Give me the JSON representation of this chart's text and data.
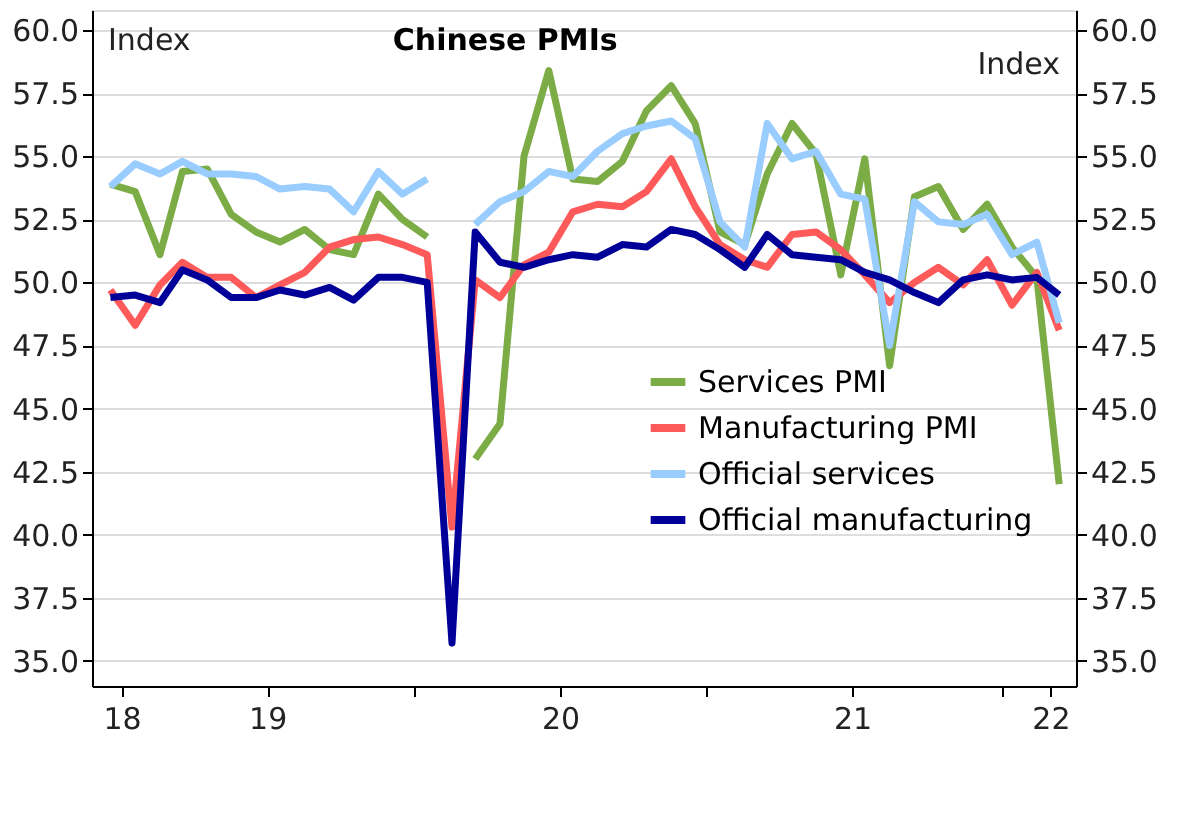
{
  "chart_data": {
    "type": "line",
    "title": "Chinese PMIs",
    "ylabel": "Index",
    "y2label": "Index",
    "x": [
      "2018-12",
      "2019-01",
      "2019-02",
      "2019-03",
      "2019-04",
      "2019-05",
      "2019-06",
      "2019-07",
      "2019-08",
      "2019-09",
      "2019-10",
      "2019-11",
      "2019-12",
      "2020-01",
      "2020-02",
      "2020-03",
      "2020-04",
      "2020-05",
      "2020-06",
      "2020-07",
      "2020-08",
      "2020-09",
      "2020-10",
      "2020-11",
      "2020-12",
      "2021-01",
      "2021-02",
      "2021-03",
      "2021-04",
      "2021-05",
      "2021-06",
      "2021-07",
      "2021-08",
      "2021-09",
      "2021-10",
      "2021-11",
      "2021-12",
      "2022-01",
      "2022-02",
      "2022-03"
    ],
    "series": [
      {
        "name": "Services PMI",
        "color": "#7cac45",
        "values": [
          53.9,
          53.6,
          51.1,
          54.4,
          54.5,
          52.7,
          52.0,
          51.6,
          52.1,
          51.3,
          51.1,
          53.5,
          52.5,
          51.8,
          null,
          43.0,
          44.4,
          55.0,
          58.4,
          54.1,
          54.0,
          54.8,
          56.8,
          57.8,
          56.3,
          52.0,
          51.5,
          54.3,
          56.3,
          55.1,
          50.3,
          54.9,
          46.7,
          53.4,
          53.8,
          52.1,
          53.1,
          51.4,
          50.2,
          42.0
        ]
      },
      {
        "name": "Manufacturing PMI",
        "color": "#ff5a5a",
        "values": [
          49.7,
          48.3,
          49.9,
          50.8,
          50.2,
          50.2,
          49.4,
          49.9,
          50.4,
          51.4,
          51.7,
          51.8,
          51.5,
          51.1,
          40.3,
          50.1,
          49.4,
          50.7,
          51.2,
          52.8,
          53.1,
          53.0,
          53.6,
          54.9,
          53.0,
          51.5,
          50.9,
          50.6,
          51.9,
          52.0,
          51.3,
          50.3,
          49.2,
          50.0,
          50.6,
          49.9,
          50.9,
          49.1,
          50.4,
          48.1
        ]
      },
      {
        "name": "Official services",
        "color": "#99ccff",
        "values": [
          53.8,
          54.7,
          54.3,
          54.8,
          54.3,
          54.3,
          54.2,
          53.7,
          53.8,
          53.7,
          52.8,
          54.4,
          53.5,
          54.1,
          null,
          52.3,
          53.2,
          53.6,
          54.4,
          54.2,
          55.2,
          55.9,
          56.2,
          56.4,
          55.7,
          52.4,
          51.4,
          56.3,
          54.9,
          55.2,
          53.5,
          53.3,
          47.5,
          53.2,
          52.4,
          52.3,
          52.7,
          51.1,
          51.6,
          48.4
        ]
      },
      {
        "name": "Official manufacturing",
        "color": "#000099",
        "values": [
          49.4,
          49.5,
          49.2,
          50.5,
          50.1,
          49.4,
          49.4,
          49.7,
          49.5,
          49.8,
          49.3,
          50.2,
          50.2,
          50.0,
          35.7,
          52.0,
          50.8,
          50.6,
          50.9,
          51.1,
          51.0,
          51.5,
          51.4,
          52.1,
          51.9,
          51.3,
          50.6,
          51.9,
          51.1,
          51.0,
          50.9,
          50.4,
          50.1,
          49.6,
          49.2,
          50.1,
          50.3,
          50.1,
          50.2,
          49.5
        ]
      }
    ],
    "xlim": [
      "2018-11-08",
      "2022-03-22"
    ],
    "xticks": [
      {
        "value": "2018-12-15",
        "label": "18"
      },
      {
        "value": "2019-06-15",
        "label": "19"
      },
      {
        "value": "2019-12-15",
        "label": null
      },
      {
        "value": "2020-06-15",
        "label": "20"
      },
      {
        "value": "2020-12-15",
        "label": null
      },
      {
        "value": "2021-06-15",
        "label": "21"
      },
      {
        "value": "2021-12-20",
        "label": null
      },
      {
        "value": "2022-02-18",
        "label": "22"
      }
    ],
    "ylim": [
      34.0,
      60.8
    ],
    "yticks": [
      {
        "value": 35,
        "label": "35.0"
      },
      {
        "value": 37.5,
        "label": "37.5"
      },
      {
        "value": 40,
        "label": "40.0"
      },
      {
        "value": 42.5,
        "label": "42.5"
      },
      {
        "value": 45,
        "label": "45.0"
      },
      {
        "value": 47.5,
        "label": "47.5"
      },
      {
        "value": 50,
        "label": "50.0"
      },
      {
        "value": 52.5,
        "label": "52.5"
      },
      {
        "value": 55,
        "label": "55.0"
      },
      {
        "value": 57.5,
        "label": "57.5"
      },
      {
        "value": 60,
        "label": "60.0"
      }
    ],
    "y2lim": [
      34.0,
      60.8
    ],
    "y2ticks": [
      {
        "value": 35,
        "label": "35.0"
      },
      {
        "value": 37.5,
        "label": "37.5"
      },
      {
        "value": 40,
        "label": "40.0"
      },
      {
        "value": 42.5,
        "label": "42.5"
      },
      {
        "value": 45,
        "label": "45.0"
      },
      {
        "value": 47.5,
        "label": "47.5"
      },
      {
        "value": 50,
        "label": "50.0"
      },
      {
        "value": 52.5,
        "label": "52.5"
      },
      {
        "value": 55,
        "label": "55.0"
      },
      {
        "value": 57.5,
        "label": "57.5"
      },
      {
        "value": 60,
        "label": "60.0"
      }
    ],
    "grid": "y",
    "legend": "right",
    "marker": "none",
    "line_style": "solid"
  }
}
